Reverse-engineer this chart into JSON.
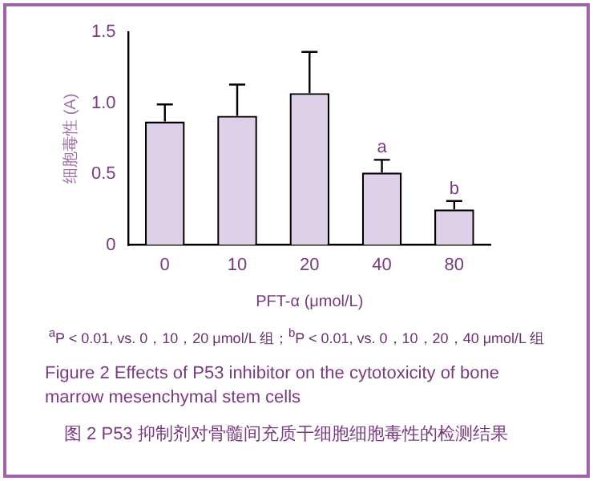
{
  "chart_data": {
    "type": "bar",
    "title": "Figure 2   Effects of P53 inhibitor on the cytotoxicity of bone marrow mesenchymal stem cells",
    "subtitle": "图 2   P53 抑制剂对骨髓间充质干细胞细胞毒性的检测结果",
    "xlabel": "PFT-α (μmol/L)",
    "ylabel": "细胞毒性 (A)",
    "categories": [
      "0",
      "10",
      "20",
      "40",
      "80"
    ],
    "values": [
      0.87,
      0.91,
      1.07,
      0.51,
      0.25
    ],
    "errors": [
      [
        0.87,
        0.99
      ],
      [
        0.91,
        1.13
      ],
      [
        1.07,
        1.36
      ],
      [
        0.51,
        0.6
      ],
      [
        0.25,
        0.31
      ]
    ],
    "color": "#ddd0e8",
    "ylim": [
      0,
      1.5
    ],
    "yticks": [
      0,
      0.5,
      {
        "value": 1,
        "label": "1.0"
      },
      {
        "value": 1.5,
        "label": "1.5"
      }
    ],
    "grid": false,
    "legend": false,
    "annotations": [
      {
        "text": "a",
        "x": "40",
        "y": 0.6
      },
      {
        "text": "b",
        "x": "80",
        "y": 0.31
      },
      "$^{a}$P < 0.01, vs. 0，10，20 μmol/L 组；$^{b}$P < 0.01, vs. 0，10，20，40 μmol/L 组"
    ]
  }
}
